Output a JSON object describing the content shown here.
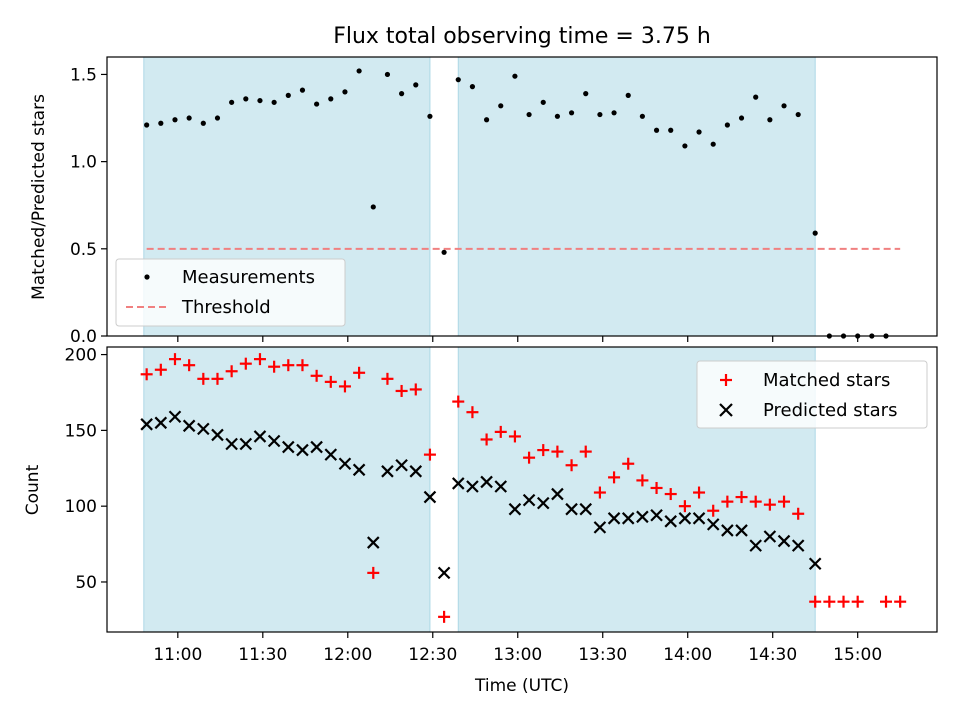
{
  "chart_data": [
    {
      "type": "scatter",
      "title": "Flux total observing time = 3.75 h",
      "ylabel": "Matched/Predicted stars",
      "ylim": [
        0,
        1.6
      ],
      "yticks": [
        0.0,
        0.5,
        1.0,
        1.5
      ],
      "ytick_labels": [
        "0.0",
        "0.5",
        "1.0",
        "1.5"
      ],
      "shaded_intervals": [
        [
          "10:48",
          "12:29"
        ],
        [
          "12:39",
          "14:45"
        ]
      ],
      "shade_color": "#add8e6",
      "legend_position": "lower-left",
      "series": [
        {
          "name": "Measurements",
          "marker": "dot",
          "color": "#000000",
          "x": [
            "10:49",
            "10:54",
            "10:59",
            "11:04",
            "11:09",
            "11:14",
            "11:19",
            "11:24",
            "11:29",
            "11:34",
            "11:39",
            "11:44",
            "11:49",
            "11:54",
            "11:59",
            "12:04",
            "12:09",
            "12:14",
            "12:19",
            "12:24",
            "12:29",
            "12:34",
            "12:39",
            "12:44",
            "12:49",
            "12:54",
            "12:59",
            "13:04",
            "13:09",
            "13:14",
            "13:19",
            "13:24",
            "13:29",
            "13:34",
            "13:39",
            "13:44",
            "13:49",
            "13:54",
            "13:59",
            "14:04",
            "14:09",
            "14:14",
            "14:19",
            "14:24",
            "14:29",
            "14:34",
            "14:39",
            "14:45",
            "14:50",
            "14:55",
            "15:00",
            "15:05",
            "15:10"
          ],
          "y": [
            1.21,
            1.22,
            1.24,
            1.25,
            1.22,
            1.25,
            1.34,
            1.36,
            1.35,
            1.34,
            1.38,
            1.41,
            1.33,
            1.36,
            1.4,
            1.52,
            0.74,
            1.5,
            1.39,
            1.44,
            1.26,
            0.48,
            1.47,
            1.43,
            1.24,
            1.32,
            1.49,
            1.27,
            1.34,
            1.26,
            1.28,
            1.39,
            1.27,
            1.28,
            1.38,
            1.26,
            1.18,
            1.18,
            1.09,
            1.17,
            1.1,
            1.21,
            1.25,
            1.37,
            1.24,
            1.32,
            1.27,
            0.59,
            0.0,
            0.0,
            0.0,
            0.0,
            0.0
          ]
        },
        {
          "name": "Threshold",
          "marker": "dashed-line",
          "color": "#f08080",
          "x": [
            "10:49",
            "15:15"
          ],
          "y": [
            0.5,
            0.5
          ]
        }
      ]
    },
    {
      "type": "scatter",
      "xlabel": "Time (UTC)",
      "ylabel": "Count",
      "ylim": [
        17,
        205
      ],
      "yticks": [
        50,
        100,
        150,
        200
      ],
      "ytick_labels": [
        "50",
        "100",
        "150",
        "200"
      ],
      "xlim": [
        "10:35",
        "15:28"
      ],
      "xticks": [
        "11:00",
        "11:30",
        "12:00",
        "12:30",
        "13:00",
        "13:30",
        "14:00",
        "14:30",
        "15:00"
      ],
      "xtick_labels": [
        "11:00",
        "11:30",
        "12:00",
        "12:30",
        "13:00",
        "13:30",
        "14:00",
        "14:30",
        "15:00"
      ],
      "shaded_intervals": [
        [
          "10:48",
          "12:29"
        ],
        [
          "12:39",
          "14:45"
        ]
      ],
      "shade_color": "#add8e6",
      "legend_position": "upper-right",
      "series": [
        {
          "name": "Matched stars",
          "marker": "plus",
          "color": "#ff0000",
          "x": [
            "10:49",
            "10:54",
            "10:59",
            "11:04",
            "11:09",
            "11:14",
            "11:19",
            "11:24",
            "11:29",
            "11:34",
            "11:39",
            "11:44",
            "11:49",
            "11:54",
            "11:59",
            "12:04",
            "12:09",
            "12:14",
            "12:19",
            "12:24",
            "12:29",
            "12:34",
            "12:39",
            "12:44",
            "12:49",
            "12:54",
            "12:59",
            "13:04",
            "13:09",
            "13:14",
            "13:19",
            "13:24",
            "13:29",
            "13:34",
            "13:39",
            "13:44",
            "13:49",
            "13:54",
            "13:59",
            "14:04",
            "14:09",
            "14:14",
            "14:19",
            "14:24",
            "14:29",
            "14:34",
            "14:39",
            "14:45",
            "14:50",
            "14:55",
            "15:00",
            "15:10",
            "15:15"
          ],
          "y": [
            187,
            190,
            197,
            193,
            184,
            184,
            189,
            194,
            197,
            192,
            193,
            193,
            186,
            182,
            179,
            188,
            56,
            184,
            176,
            177,
            134,
            27,
            169,
            162,
            144,
            149,
            146,
            132,
            137,
            136,
            127,
            136,
            109,
            119,
            128,
            117,
            112,
            108,
            100,
            109,
            97,
            103,
            106,
            103,
            101,
            103,
            95,
            37,
            37,
            37,
            37,
            37,
            37
          ]
        },
        {
          "name": "Predicted stars",
          "marker": "x",
          "color": "#000000",
          "x": [
            "10:49",
            "10:54",
            "10:59",
            "11:04",
            "11:09",
            "11:14",
            "11:19",
            "11:24",
            "11:29",
            "11:34",
            "11:39",
            "11:44",
            "11:49",
            "11:54",
            "11:59",
            "12:04",
            "12:09",
            "12:14",
            "12:19",
            "12:24",
            "12:29",
            "12:34",
            "12:39",
            "12:44",
            "12:49",
            "12:54",
            "12:59",
            "13:04",
            "13:09",
            "13:14",
            "13:19",
            "13:24",
            "13:29",
            "13:34",
            "13:39",
            "13:44",
            "13:49",
            "13:54",
            "13:59",
            "14:04",
            "14:09",
            "14:14",
            "14:19",
            "14:24",
            "14:29",
            "14:34",
            "14:39",
            "14:45"
          ],
          "y": [
            154,
            155,
            159,
            153,
            151,
            147,
            141,
            141,
            146,
            143,
            139,
            137,
            139,
            134,
            128,
            124,
            76,
            123,
            127,
            123,
            106,
            56,
            115,
            113,
            116,
            113,
            98,
            104,
            102,
            108,
            98,
            98,
            86,
            92,
            92,
            93,
            94,
            90,
            92,
            92,
            88,
            84,
            84,
            74,
            80,
            77,
            74,
            62
          ]
        }
      ]
    }
  ]
}
